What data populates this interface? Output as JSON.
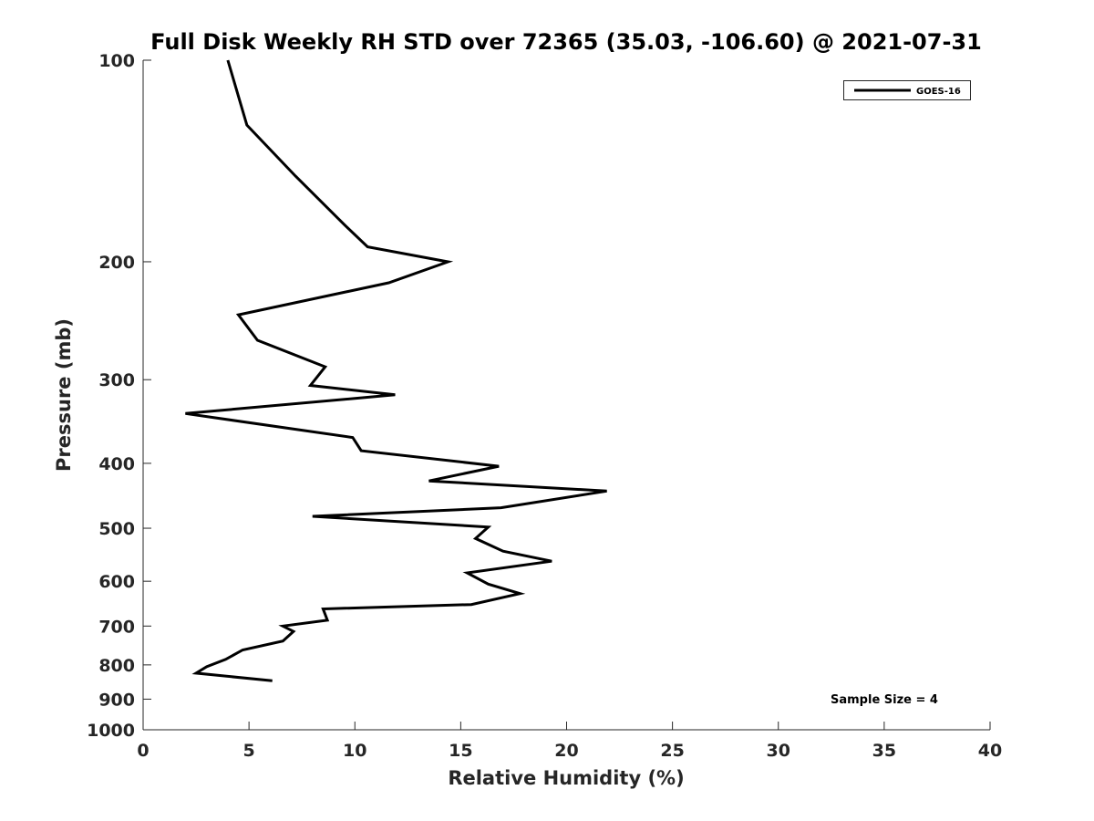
{
  "chart_data": {
    "type": "line",
    "title": "Full Disk Weekly RH STD over 72365 (35.03, -106.60) @ 2021-07-31",
    "xlabel": "Relative Humidity (%)",
    "ylabel": "Pressure (mb)",
    "xlim": [
      0,
      40
    ],
    "ylim": [
      1000,
      100
    ],
    "y_scale": "log",
    "y_reversed": true,
    "grid": false,
    "legend_placement": "top-right",
    "x_ticks": [
      0,
      5,
      10,
      15,
      20,
      25,
      30,
      35,
      40
    ],
    "y_ticks": [
      100,
      200,
      300,
      400,
      500,
      600,
      700,
      800,
      900,
      1000
    ],
    "annotation": "Sample Size = 4",
    "line_color": "#000000",
    "series": [
      {
        "name": "GOES-16",
        "points": [
          {
            "x": 4.0,
            "y": 100
          },
          {
            "x": 4.9,
            "y": 125
          },
          {
            "x": 7.2,
            "y": 149
          },
          {
            "x": 9.5,
            "y": 176
          },
          {
            "x": 10.6,
            "y": 190
          },
          {
            "x": 14.4,
            "y": 200
          },
          {
            "x": 11.6,
            "y": 215
          },
          {
            "x": 4.5,
            "y": 240
          },
          {
            "x": 5.4,
            "y": 262
          },
          {
            "x": 8.6,
            "y": 287
          },
          {
            "x": 7.9,
            "y": 306
          },
          {
            "x": 11.9,
            "y": 316
          },
          {
            "x": 2.0,
            "y": 337
          },
          {
            "x": 9.9,
            "y": 366
          },
          {
            "x": 10.3,
            "y": 383
          },
          {
            "x": 16.8,
            "y": 404
          },
          {
            "x": 13.5,
            "y": 425
          },
          {
            "x": 21.9,
            "y": 440
          },
          {
            "x": 16.9,
            "y": 466
          },
          {
            "x": 8.0,
            "y": 480
          },
          {
            "x": 16.3,
            "y": 498
          },
          {
            "x": 15.7,
            "y": 518
          },
          {
            "x": 17.0,
            "y": 541
          },
          {
            "x": 19.3,
            "y": 560
          },
          {
            "x": 15.3,
            "y": 583
          },
          {
            "x": 16.3,
            "y": 606
          },
          {
            "x": 17.8,
            "y": 626
          },
          {
            "x": 15.5,
            "y": 650
          },
          {
            "x": 8.5,
            "y": 660
          },
          {
            "x": 8.7,
            "y": 686
          },
          {
            "x": 6.6,
            "y": 700
          },
          {
            "x": 7.1,
            "y": 713
          },
          {
            "x": 6.6,
            "y": 737
          },
          {
            "x": 4.7,
            "y": 760
          },
          {
            "x": 3.9,
            "y": 785
          },
          {
            "x": 3.0,
            "y": 805
          },
          {
            "x": 2.5,
            "y": 823
          },
          {
            "x": 6.1,
            "y": 845
          }
        ]
      }
    ]
  }
}
